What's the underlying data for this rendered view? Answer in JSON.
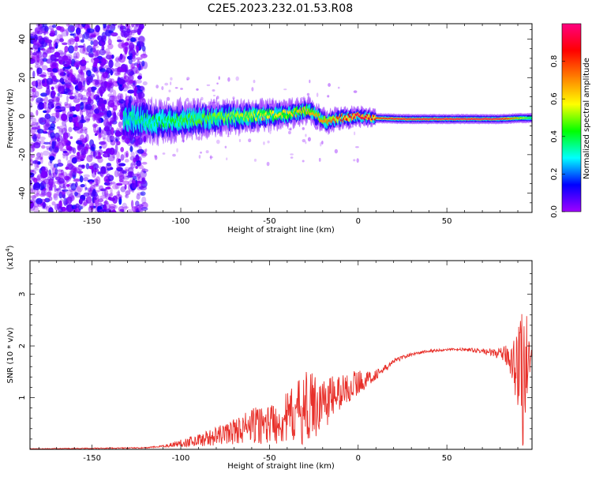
{
  "title": "C2E5.2023.232.01.53.R08",
  "chart_data": [
    {
      "type": "heatmap",
      "xlabel": "Height of straight line (km)",
      "ylabel": "Frequency (Hz)",
      "xlim": [
        -185,
        98
      ],
      "ylim": [
        -50,
        48
      ],
      "x_ticks": [
        -150,
        -100,
        -50,
        0,
        50
      ],
      "y_ticks": [
        -40,
        -20,
        0,
        20,
        40
      ],
      "colorbar": {
        "label": "Normalized spectral amplitude",
        "range": [
          0,
          1
        ],
        "ticks": [
          0.0,
          0.2,
          0.4,
          0.6,
          0.8
        ],
        "tick_labels": [
          "0.0",
          "0.2",
          "0.4",
          "0.6",
          "0.8"
        ],
        "colormap": [
          "#a000ff",
          "#0000ff",
          "#00ffff",
          "#00ff00",
          "#ffff00",
          "#ff8000",
          "#ff0000",
          "#ff0080"
        ]
      },
      "ridge": {
        "description_points_x": [
          -130,
          -115,
          -100,
          -80,
          -60,
          -40,
          -28,
          -18,
          -10,
          0,
          10,
          25,
          50,
          80,
          92,
          98
        ],
        "description_points_y": [
          -1,
          -3,
          -2,
          -1,
          0,
          1,
          3,
          -3,
          -1,
          0,
          -1,
          -1.5,
          -1.5,
          -1.5,
          -1,
          -1
        ],
        "peak_amplitude": [
          0.35,
          0.4,
          0.45,
          0.5,
          0.55,
          0.6,
          0.65,
          0.7,
          0.8,
          0.95,
          0.85,
          0.95,
          0.98,
          0.98,
          0.6,
          0.4
        ]
      },
      "noise_region_x": [
        -185,
        -120
      ]
    },
    {
      "type": "line",
      "xlabel": "Height of straight line (km)",
      "ylabel": "SNR (10 * v/v)",
      "scale_label": "(x10",
      "scale_exp": "4",
      "scale_close": ")",
      "xlim": [
        -185,
        98
      ],
      "ylim": [
        0,
        3.65
      ],
      "x_ticks": [
        -150,
        -100,
        -50,
        0,
        50
      ],
      "y_ticks": [
        1,
        2,
        3
      ],
      "color": "#e8302a",
      "series": [
        {
          "x": [
            -185,
            -150,
            -120,
            -110,
            -100,
            -90,
            -80,
            -70,
            -60,
            -50,
            -45,
            -40,
            -35,
            -30,
            -25,
            -20,
            -15,
            -10,
            -5,
            0,
            5,
            10,
            15,
            20,
            25,
            30,
            40,
            50,
            60,
            70,
            75,
            80,
            85,
            88,
            90,
            92,
            94,
            96,
            98
          ],
          "y": [
            0.01,
            0.02,
            0.03,
            0.06,
            0.12,
            0.18,
            0.25,
            0.35,
            0.45,
            0.5,
            0.55,
            0.6,
            0.7,
            0.8,
            0.85,
            0.9,
            1.0,
            1.1,
            1.2,
            1.3,
            1.35,
            1.45,
            1.55,
            1.7,
            1.78,
            1.84,
            1.9,
            1.93,
            1.93,
            1.9,
            1.87,
            1.85,
            1.8,
            1.7,
            1.6,
            1.4,
            1.6,
            1.75,
            1.85
          ],
          "noise": [
            0.005,
            0.01,
            0.01,
            0.02,
            0.08,
            0.12,
            0.18,
            0.25,
            0.35,
            0.4,
            0.45,
            0.5,
            0.6,
            0.7,
            0.65,
            0.55,
            0.45,
            0.35,
            0.3,
            0.25,
            0.15,
            0.1,
            0.08,
            0.05,
            0.04,
            0.03,
            0.03,
            0.02,
            0.03,
            0.05,
            0.08,
            0.1,
            0.25,
            0.6,
            0.9,
            1.3,
            1.6,
            0.5,
            0.1
          ]
        }
      ]
    }
  ]
}
